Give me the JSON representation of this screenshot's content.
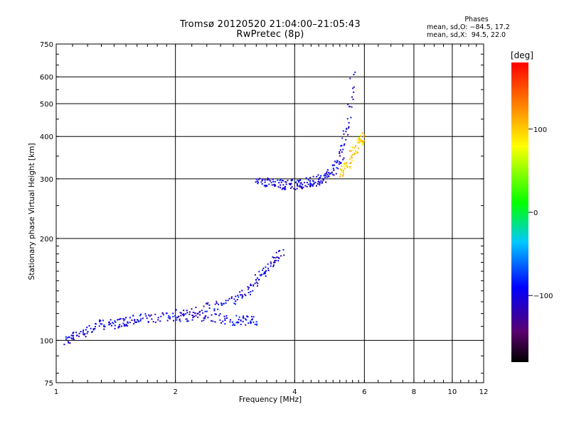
{
  "title_line1": "Tromsø 20120520 21:04:00–21:05:43",
  "title_line2": "RwPretec (8p)",
  "phases": {
    "header": "Phases",
    "row_o": "mean, sd,O: −84.5, 17.2",
    "row_x": "mean, sd,X:  94.5, 22.0"
  },
  "colorbar": {
    "unit": "[deg]",
    "ticks": [
      "100",
      "0",
      "−100"
    ],
    "tick_values": [
      100,
      0,
      -100
    ],
    "range": [
      -180,
      180
    ]
  },
  "chart_data": {
    "type": "scatter",
    "xlabel": "Frequency [MHz]",
    "ylabel": "Stationary phase Virtual Height [km]",
    "xscale": "log",
    "yscale": "log",
    "xlim": [
      1,
      12
    ],
    "ylim": [
      75,
      750
    ],
    "xticks": [
      1,
      2,
      4,
      6,
      8,
      10,
      12
    ],
    "xtick_labels": [
      "1",
      "2",
      "4",
      "6",
      "8",
      "10",
      "12"
    ],
    "yticks": [
      75,
      100,
      200,
      300,
      400,
      500,
      600,
      750
    ],
    "ytick_labels": [
      "75",
      "100",
      "200",
      "300",
      "400",
      "500",
      "600",
      "750"
    ],
    "grid": true,
    "traces": [
      {
        "name": "",
        "phase": -100,
        "x": [
          1.05,
          1.1,
          1.2,
          1.3,
          1.4,
          1.5,
          1.6,
          1.8,
          2.0,
          2.2,
          2.5,
          2.8,
          3.0,
          3.2
        ],
        "y": [
          100,
          103,
          108,
          112,
          112,
          114,
          116,
          117,
          118,
          118,
          117,
          115,
          115,
          114
        ]
      },
      {
        "name": "",
        "phase": -100,
        "x": [
          2.0,
          2.3,
          2.6,
          2.9,
          3.1,
          3.3,
          3.5,
          3.7
        ],
        "y": [
          120,
          123,
          128,
          135,
          145,
          158,
          170,
          185
        ]
      },
      {
        "name": "",
        "phase": -100,
        "x": [
          3.2,
          3.4,
          3.6,
          3.8,
          4.0,
          4.2,
          4.4,
          4.6,
          4.8,
          5.0,
          5.2,
          5.4,
          5.6
        ],
        "y": [
          300,
          295,
          290,
          288,
          290,
          292,
          295,
          298,
          305,
          320,
          350,
          420,
          620
        ]
      },
      {
        "name": "",
        "phase": 100,
        "x": [
          5.2,
          5.4,
          5.6,
          5.8,
          6.0
        ],
        "y": [
          310,
          330,
          360,
          390,
          400
        ]
      }
    ]
  }
}
